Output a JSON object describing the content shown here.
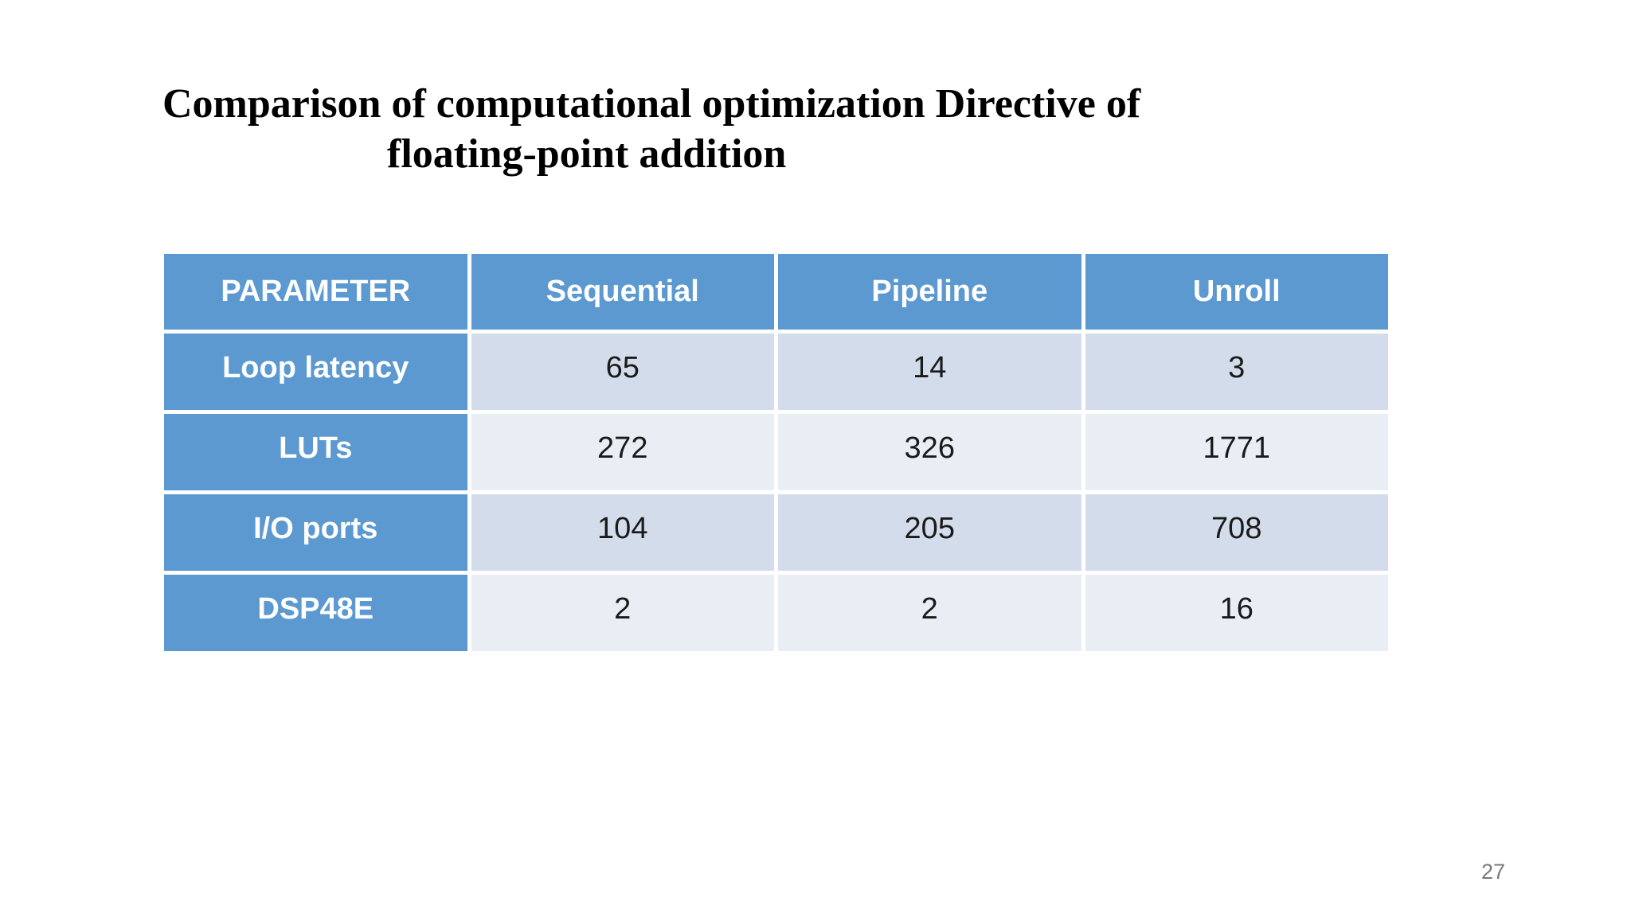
{
  "slide": {
    "title": {
      "line1": "Comparison of computational optimization Directive of",
      "line2": "floating-point addition"
    },
    "page_number": "27",
    "table": {
      "header": [
        "PARAMETER",
        "Sequential",
        "Pipeline",
        "Unroll"
      ],
      "rows": [
        {
          "label": "Loop latency",
          "values": [
            "65",
            "14",
            "3"
          ]
        },
        {
          "label": "LUTs",
          "values": [
            "272",
            "326",
            "1771"
          ]
        },
        {
          "label": "I/O ports",
          "values": [
            "104",
            "205",
            "708"
          ]
        },
        {
          "label": "DSP48E",
          "values": [
            "2",
            "2",
            "16"
          ]
        }
      ]
    },
    "colors": {
      "header_blue": "#5b99d0",
      "band_dark": "#d3dcea",
      "band_light": "#e9eef5",
      "title_text": "#000000",
      "page_number_gray": "#7a7a7a"
    }
  }
}
